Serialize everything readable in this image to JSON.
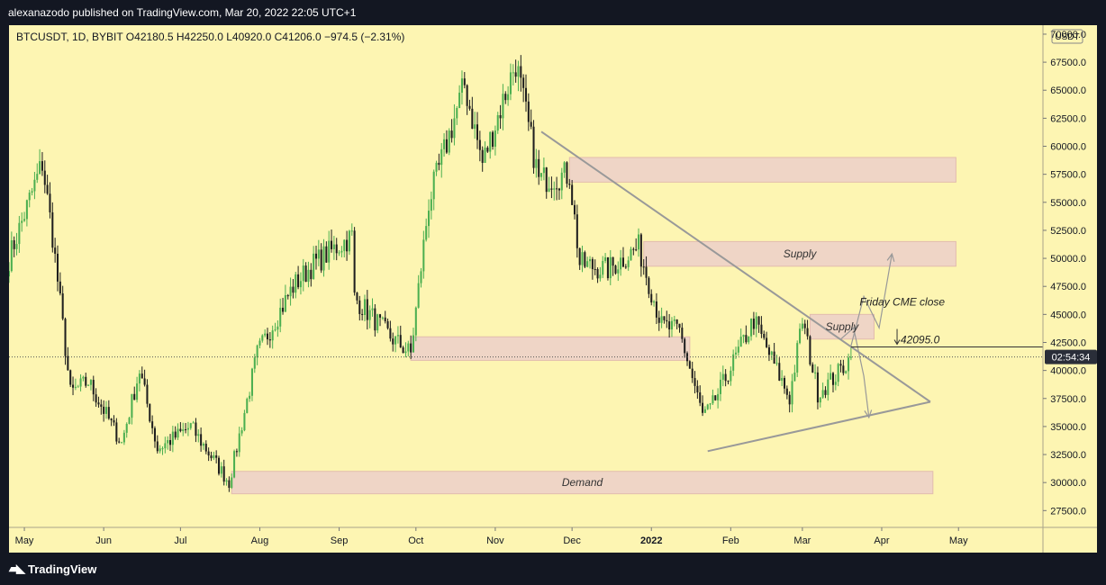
{
  "header": {
    "publisher_line": "alexanazodo published on TradingView.com, Mar 20, 2022 22:05 UTC+1"
  },
  "footer": {
    "brand_icon": "tradingview-logo-icon",
    "brand_text": "TradingView"
  },
  "chart": {
    "symbol_line": "BTCUSDT, 1D, BYBIT  O42180.5  H42250.0  L40920.0  C41206.0  −974.5 (−2.31%)",
    "currency_badge": "USDT",
    "price_tag": "02:54:34",
    "cme_label": "Friday CME close",
    "cme_value": "42095.0",
    "colors": {
      "background": "#fdf5b2",
      "up": "#4caf50",
      "down": "#1e1e1e",
      "zone_fill": "#efd5c6",
      "zone_stroke": "#e2bcae",
      "trendline": "#999999",
      "price_tag": "#2a2e39"
    }
  },
  "chart_data": {
    "type": "candlestick",
    "title": "BTCUSDT, 1D, BYBIT",
    "ohlc_last": {
      "open": 42180.5,
      "high": 42250.0,
      "low": 40920.0,
      "close": 41206.0,
      "change": -974.5,
      "change_pct": -2.31
    },
    "y_ticks": [
      27500,
      30000,
      32500,
      35000,
      37500,
      40000,
      42500,
      45000,
      47500,
      50000,
      52500,
      55000,
      57500,
      60000,
      62500,
      65000,
      67500,
      70000
    ],
    "ylim": [
      26000,
      70800
    ],
    "x_ticks": [
      "May",
      "Jun",
      "Jul",
      "Aug",
      "Sep",
      "Oct",
      "Nov",
      "Dec",
      "2022",
      "Feb",
      "Mar",
      "Apr",
      "May"
    ],
    "key_points": [
      {
        "date": "2021-04-25",
        "price": 50000
      },
      {
        "date": "2021-05-08",
        "price": 58500
      },
      {
        "date": "2021-05-12",
        "price": 52000
      },
      {
        "date": "2021-05-19",
        "price": 38000
      },
      {
        "date": "2021-05-26",
        "price": 39000
      },
      {
        "date": "2021-06-08",
        "price": 33500
      },
      {
        "date": "2021-06-15",
        "price": 40000
      },
      {
        "date": "2021-06-22",
        "price": 33000
      },
      {
        "date": "2021-07-05",
        "price": 35000
      },
      {
        "date": "2021-07-20",
        "price": 30000
      },
      {
        "date": "2021-07-31",
        "price": 41500
      },
      {
        "date": "2021-08-14",
        "price": 47500
      },
      {
        "date": "2021-08-22",
        "price": 49500
      },
      {
        "date": "2021-09-06",
        "price": 52000
      },
      {
        "date": "2021-09-07",
        "price": 46500
      },
      {
        "date": "2021-09-21",
        "price": 43000
      },
      {
        "date": "2021-09-29",
        "price": 41500
      },
      {
        "date": "2021-10-06",
        "price": 55000
      },
      {
        "date": "2021-10-20",
        "price": 65500
      },
      {
        "date": "2021-10-27",
        "price": 58500
      },
      {
        "date": "2021-11-09",
        "price": 67500
      },
      {
        "date": "2021-11-18",
        "price": 57000
      },
      {
        "date": "2021-11-30",
        "price": 57500
      },
      {
        "date": "2021-12-04",
        "price": 49500
      },
      {
        "date": "2021-12-15",
        "price": 49000
      },
      {
        "date": "2021-12-27",
        "price": 51000
      },
      {
        "date": "2022-01-05",
        "price": 44000
      },
      {
        "date": "2022-01-12",
        "price": 43500
      },
      {
        "date": "2022-01-21",
        "price": 36000
      },
      {
        "date": "2022-01-24",
        "price": 36500
      },
      {
        "date": "2022-02-10",
        "price": 44500
      },
      {
        "date": "2022-02-24",
        "price": 37500
      },
      {
        "date": "2022-03-01",
        "price": 44500
      },
      {
        "date": "2022-03-07",
        "price": 38000
      },
      {
        "date": "2022-03-14",
        "price": 39500
      },
      {
        "date": "2022-03-20",
        "price": 41206
      }
    ],
    "zones": [
      {
        "label": "",
        "from": "2021-11-30",
        "to": "2022-04-30",
        "low": 56800,
        "high": 59000
      },
      {
        "label": "Supply",
        "from": "2021-12-29",
        "to": "2022-04-30",
        "low": 49300,
        "high": 51500
      },
      {
        "label": "Supply",
        "from": "2022-03-04",
        "to": "2022-03-29",
        "low": 42800,
        "high": 45000
      },
      {
        "label": "",
        "from": "2021-09-29",
        "to": "2022-01-16",
        "low": 40900,
        "high": 43000
      },
      {
        "label": "Demand",
        "from": "2021-07-21",
        "to": "2022-04-21",
        "low": 29000,
        "high": 31000
      }
    ],
    "trendlines": [
      {
        "from": {
          "date": "2021-11-19",
          "price": 61300
        },
        "to": {
          "date": "2022-04-20",
          "price": 37200
        }
      },
      {
        "from": {
          "date": "2022-01-23",
          "price": 32800
        },
        "to": {
          "date": "2022-04-20",
          "price": 37200
        }
      }
    ],
    "projections": [
      {
        "points": [
          [
            "2022-03-16",
            42800
          ],
          [
            "2022-03-21",
            43800
          ],
          [
            "2022-03-25",
            39500
          ],
          [
            "2022-03-27",
            35800
          ]
        ]
      },
      {
        "points": [
          [
            "2022-03-20",
            42200
          ],
          [
            "2022-03-25",
            46600
          ],
          [
            "2022-03-31",
            43800
          ],
          [
            "2022-04-05",
            50400
          ]
        ]
      }
    ],
    "annotations": [
      {
        "text": "Friday CME close",
        "value": 42095.0
      }
    ],
    "current_price": 41206.0
  }
}
